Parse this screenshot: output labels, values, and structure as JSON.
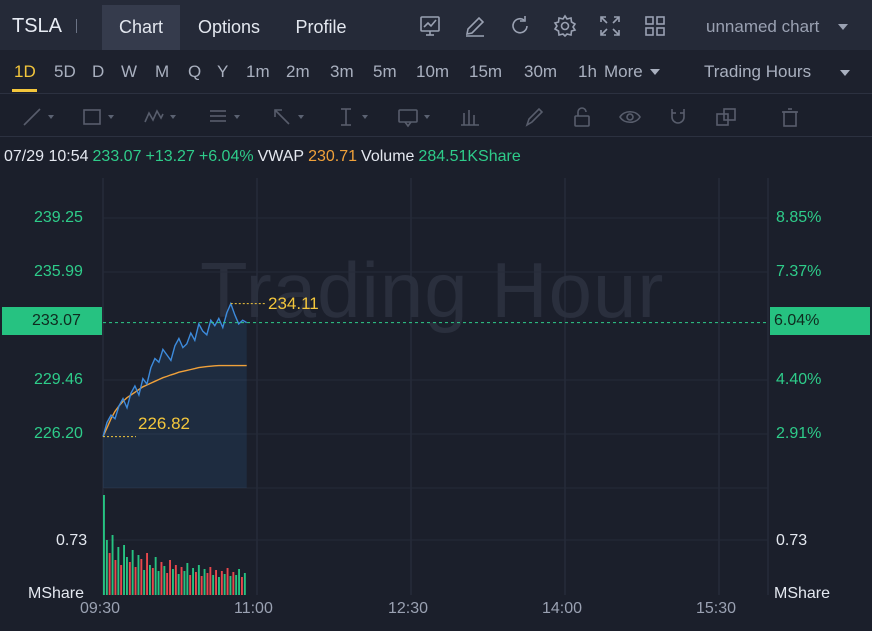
{
  "header": {
    "ticker": "TSLA",
    "tabs": [
      {
        "label": "Chart",
        "active": true
      },
      {
        "label": "Options",
        "active": false
      },
      {
        "label": "Profile",
        "active": false
      }
    ],
    "tools": [
      "indicator-chart-icon",
      "draw-edit-icon",
      "refresh-icon",
      "settings-gear-icon",
      "fullscreen-icon",
      "layout-grid-icon"
    ],
    "chart_name": "unnamed chart"
  },
  "periods": {
    "items": [
      "1D",
      "5D",
      "D",
      "W",
      "M",
      "Q",
      "Y",
      "1m",
      "2m",
      "3m",
      "5m",
      "10m",
      "15m",
      "30m",
      "1h"
    ],
    "active": "1D",
    "more_label": "More",
    "trading_hours_label": "Trading Hours"
  },
  "drawing_tools": [
    "trend-line-icon",
    "rectangle-icon",
    "wave-pattern-icon",
    "fibonacci-icon",
    "arrow-icon",
    "vertical-measure-icon",
    "text-note-icon",
    "bar-pattern-icon",
    "brush-icon",
    "lock-icon",
    "eye-icon",
    "magnet-icon",
    "clone-icon",
    "trash-icon"
  ],
  "info": {
    "datetime": "07/29 10:54",
    "price": "233.07",
    "change": "+13.27",
    "change_pct": "+6.04%",
    "vwap_label": "VWAP",
    "vwap_value": "230.71",
    "volume_label": "Volume",
    "volume_value": "284.51KShare"
  },
  "watermark": "Trading Hour",
  "axes": {
    "left_prices": [
      "239.25",
      "235.99",
      "229.46",
      "226.20"
    ],
    "right_pcts": [
      "8.85%",
      "7.37%",
      "4.40%",
      "2.91%"
    ],
    "current_price": "233.07",
    "current_pct": "6.04%",
    "volume_left": "0.73",
    "volume_right": "0.73",
    "volume_unit_left": "MShare",
    "volume_unit_right": "MShare",
    "x_times": [
      "09:30",
      "11:00",
      "12:30",
      "14:00",
      "15:30"
    ]
  },
  "annotations": {
    "high": "234.11",
    "low": "226.82"
  },
  "colors": {
    "price_line": "#3d8bdc",
    "vwap_line": "#f0a13a",
    "up": "#26c281",
    "down": "#e8474c",
    "accent": "#f3c63c"
  },
  "chart_data": {
    "type": "line",
    "x_time_start": "09:30",
    "x_time_end": "10:54",
    "ylim": [
      224.0,
      241.0
    ],
    "price": [
      226.82,
      227.6,
      228.0,
      227.8,
      228.5,
      228.9,
      228.4,
      229.2,
      229.6,
      229.1,
      230.0,
      229.7,
      230.6,
      231.1,
      230.9,
      231.6,
      231.3,
      231.0,
      231.8,
      232.2,
      231.7,
      231.9,
      232.5,
      232.1,
      233.0,
      232.6,
      232.4,
      233.2,
      232.9,
      233.3,
      232.8,
      233.6,
      234.11,
      233.5,
      233.0,
      233.2,
      233.07
    ],
    "vwap": [
      226.82,
      227.3,
      227.8,
      228.2,
      228.5,
      228.75,
      228.95,
      229.1,
      229.25,
      229.4,
      229.55,
      229.65,
      229.75,
      229.85,
      229.95,
      230.05,
      230.12,
      230.2,
      230.27,
      230.35,
      230.4,
      230.45,
      230.5,
      230.55,
      230.6,
      230.63,
      230.66,
      230.68,
      230.7,
      230.71,
      230.71,
      230.71,
      230.71,
      230.71,
      230.71,
      230.71,
      230.71
    ],
    "volume_max": 1.0,
    "volume": [
      1.0,
      0.55,
      0.42,
      0.6,
      0.35,
      0.48,
      0.3,
      0.5,
      0.38,
      0.33,
      0.45,
      0.28,
      0.4,
      0.36,
      0.25,
      0.42,
      0.3,
      0.27,
      0.38,
      0.24,
      0.33,
      0.29,
      0.22,
      0.35,
      0.26,
      0.3,
      0.21,
      0.28,
      0.24,
      0.32,
      0.2,
      0.27,
      0.23,
      0.3,
      0.19,
      0.26,
      0.22,
      0.28,
      0.2,
      0.25,
      0.18,
      0.24,
      0.21,
      0.27,
      0.19,
      0.23,
      0.2,
      0.26,
      0.18,
      0.22
    ],
    "volume_up": [
      true,
      true,
      false,
      true,
      false,
      true,
      false,
      true,
      true,
      false,
      true,
      false,
      true,
      false,
      true,
      false,
      true,
      false,
      true,
      true,
      false,
      true,
      false,
      false,
      true,
      false,
      true,
      false,
      true,
      true,
      false,
      true,
      false,
      true,
      false,
      true,
      false,
      false,
      true,
      false,
      true,
      false,
      true,
      false,
      true,
      false,
      true,
      true,
      false,
      true
    ]
  }
}
